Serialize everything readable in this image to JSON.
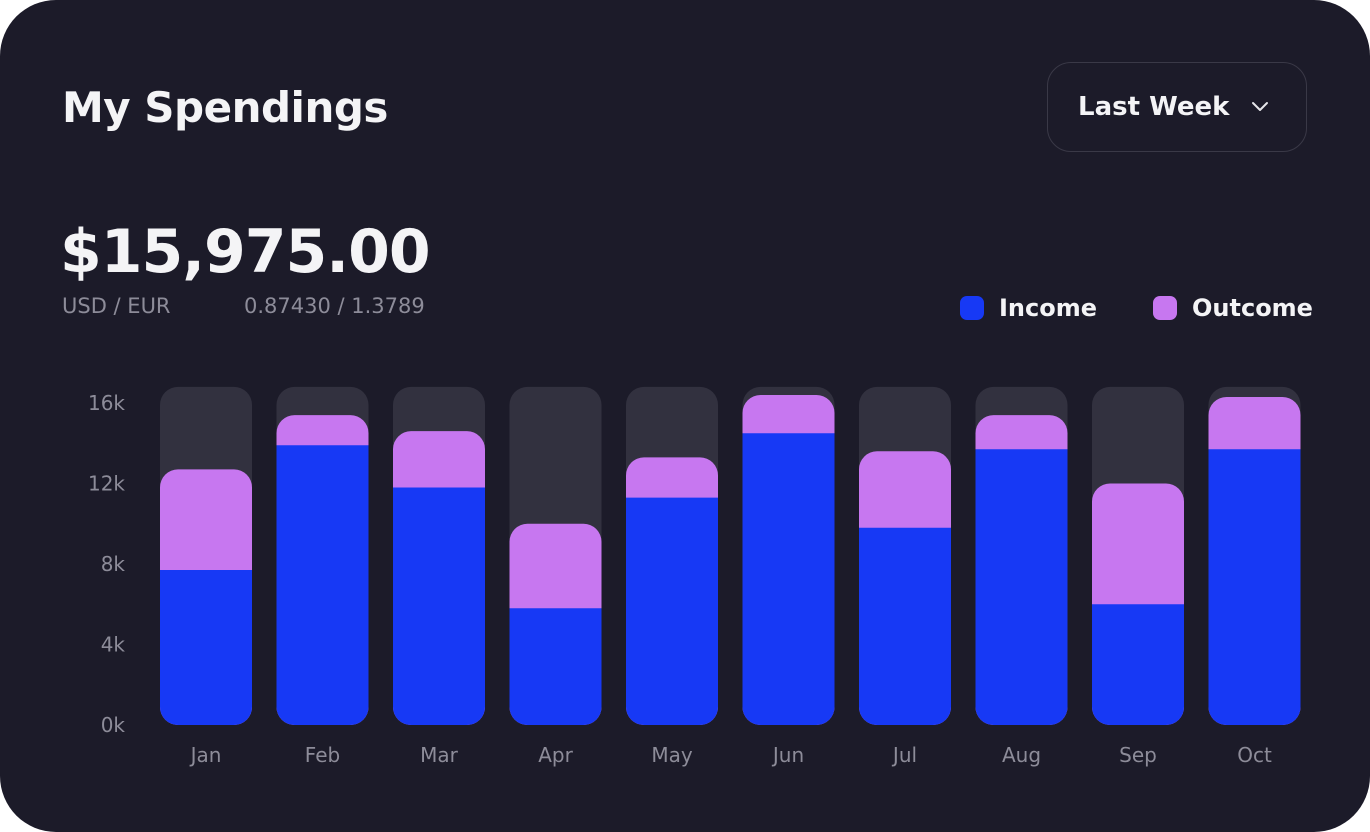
{
  "header": {
    "title": "My Spendings",
    "period_select": {
      "value": "Last Week",
      "icon": "chevron-down-icon"
    }
  },
  "summary": {
    "amount": "$15,975.00",
    "rate_label": "USD / EUR",
    "rate_value": "0.87430 / 1.3789"
  },
  "colors": {
    "background": "#1c1b29",
    "income": "#1739f5",
    "outcome": "#c777f0",
    "track": "#32313f"
  },
  "chart_data": {
    "type": "bar",
    "stacked": true,
    "categories": [
      "Jan",
      "Feb",
      "Mar",
      "Apr",
      "May",
      "Jun",
      "Jul",
      "Aug",
      "Sep",
      "Oct"
    ],
    "series": [
      {
        "name": "Income",
        "values": [
          7700,
          13900,
          11800,
          5800,
          11300,
          14500,
          9800,
          13700,
          6000,
          13700
        ]
      },
      {
        "name": "Outcome",
        "values": [
          5000,
          1500,
          2800,
          4200,
          2000,
          1900,
          3800,
          1700,
          6000,
          2600
        ]
      }
    ],
    "y_ticks": [
      "0k",
      "4k",
      "8k",
      "12k",
      "16k"
    ],
    "ylim": [
      0,
      16800
    ],
    "legend": {
      "position": "top-right",
      "entries": [
        "Income",
        "Outcome"
      ]
    },
    "grid": false,
    "title": "",
    "xlabel": "",
    "ylabel": ""
  }
}
